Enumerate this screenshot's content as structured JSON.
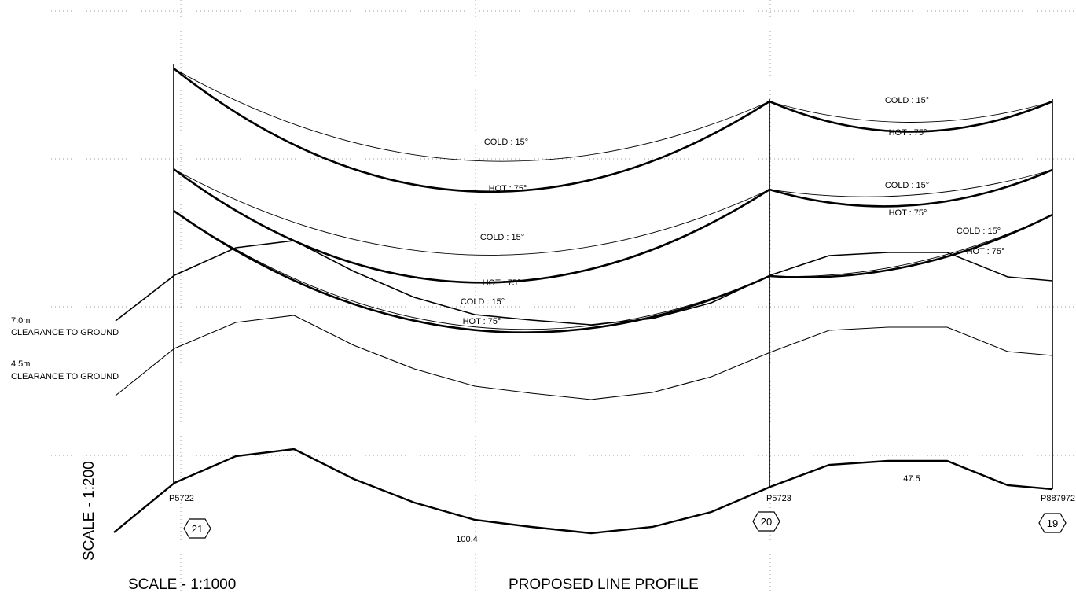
{
  "title": "PROPOSED LINE PROFILE",
  "scales": {
    "horizontal": "SCALE - 1:1000",
    "vertical": "SCALE - 1:200"
  },
  "clearances": [
    {
      "value": "7.0m",
      "text": "CLEARANCE TO GROUND"
    },
    {
      "value": "4.5m",
      "text": "CLEARANCE TO GROUND"
    }
  ],
  "poles": [
    {
      "id": "P5722",
      "number": "21"
    },
    {
      "id": "P5723",
      "number": "20"
    },
    {
      "id": "P887972",
      "number": "19"
    }
  ],
  "spans": [
    {
      "length": "100.4"
    },
    {
      "length": "47.5"
    }
  ],
  "conductor_labels": {
    "span1": [
      "COLD : 15°",
      "HOT : 75°",
      "COLD : 15°",
      "HOT : 75°",
      "COLD : 15°",
      "HOT : 75°"
    ],
    "span2": [
      "COLD : 15°",
      "HOT : 75°",
      "COLD : 15°",
      "HOT : 75°",
      "COLD : 15°",
      "HOT : 75°"
    ]
  }
}
